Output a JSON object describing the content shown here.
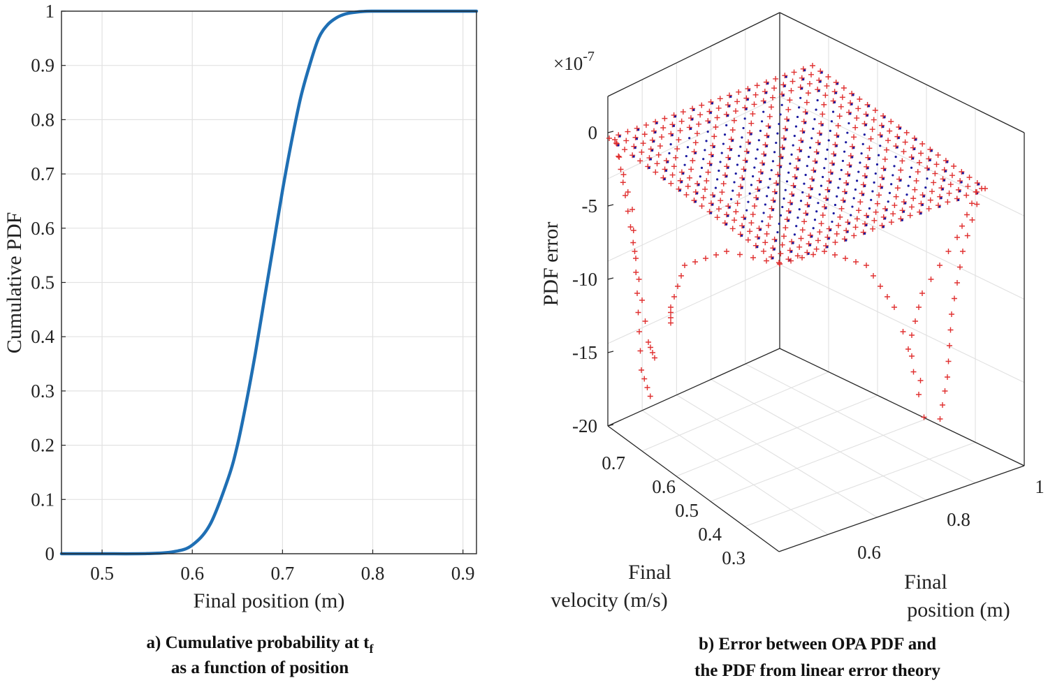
{
  "chart_data": [
    {
      "type": "line",
      "xlabel": "Final position (m)",
      "ylabel": "Cumulative PDF",
      "xlim": [
        0.455,
        0.915
      ],
      "ylim": [
        0,
        1
      ],
      "x_ticks": [
        "0.5",
        "0.6",
        "0.7",
        "0.8",
        "0.9"
      ],
      "x_tick_values": [
        0.5,
        0.6,
        0.7,
        0.8,
        0.9
      ],
      "y_ticks": [
        "0",
        "0.1",
        "0.2",
        "0.3",
        "0.4",
        "0.5",
        "0.6",
        "0.7",
        "0.8",
        "0.9",
        "1"
      ],
      "y_tick_values": [
        0,
        0.1,
        0.2,
        0.3,
        0.4,
        0.5,
        0.6,
        0.7,
        0.8,
        0.9,
        1
      ],
      "grid": true,
      "series": [
        {
          "color": "#1f6fb4",
          "x": [
            0.455,
            0.5,
            0.55,
            0.58,
            0.6,
            0.62,
            0.64,
            0.65,
            0.66,
            0.67,
            0.68,
            0.69,
            0.7,
            0.71,
            0.72,
            0.73,
            0.74,
            0.75,
            0.76,
            0.77,
            0.78,
            0.79,
            0.8,
            0.82,
            0.85,
            0.915
          ],
          "y": [
            0.0,
            0.0,
            0.0003,
            0.004,
            0.016,
            0.055,
            0.14,
            0.2,
            0.28,
            0.37,
            0.47,
            0.57,
            0.67,
            0.76,
            0.84,
            0.9,
            0.95,
            0.975,
            0.988,
            0.995,
            0.998,
            0.9995,
            1.0,
            1.0,
            1.0,
            1.0
          ]
        }
      ],
      "caption_lines": [
        "a) Cumulative probability at t",
        "as a function of position"
      ],
      "caption_subscript": "f"
    },
    {
      "type": "scatter",
      "zlabel": "PDF error",
      "z_exponent_base": "×10",
      "z_exponent_power": "-7",
      "z_ticks": [
        "0",
        "-5",
        "-10",
        "-15",
        "-20"
      ],
      "z_tick_values": [
        0,
        -5,
        -10,
        -15,
        -20
      ],
      "xlabel_lines": [
        "Final",
        "position (m)"
      ],
      "x_ticks": [
        "0.6",
        "0.8",
        "1"
      ],
      "ylabel_lines": [
        "Final",
        "velocity (m/s)"
      ],
      "y_ticks": [
        "0.3",
        "0.4",
        "0.5",
        "0.6",
        "0.7"
      ],
      "grid": true,
      "series_colors": {
        "plus_markers": "#e03030",
        "dot_markers": "#1a1aa0"
      },
      "caption_lines": [
        "b) Error between OPA PDF and",
        "the PDF from linear error theory"
      ]
    }
  ]
}
